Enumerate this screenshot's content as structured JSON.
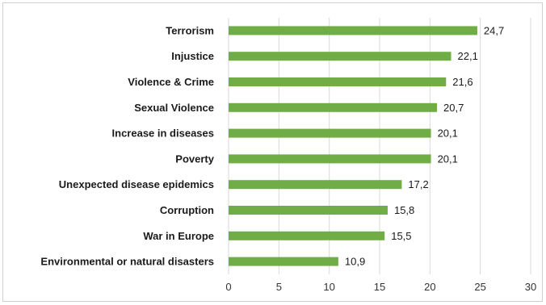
{
  "chart_data": {
    "type": "bar",
    "orientation": "horizontal",
    "title": "",
    "xlabel": "",
    "ylabel": "",
    "categories": [
      "Terrorism",
      "Injustice",
      "Violence & Crime",
      "Sexual Violence",
      "Increase in diseases",
      "Poverty",
      "Unexpected disease epidemics",
      "Corruption",
      "War in Europe",
      "Environmental or natural disasters"
    ],
    "values": [
      24.7,
      22.1,
      21.6,
      20.7,
      20.1,
      20.1,
      17.2,
      15.8,
      15.5,
      10.9
    ],
    "value_labels": [
      "24,7",
      "22,1",
      "21,6",
      "20,7",
      "20,1",
      "20,1",
      "17,2",
      "15,8",
      "15,5",
      "10,9"
    ],
    "xlim": [
      0,
      30
    ],
    "xticks": [
      0,
      5,
      10,
      15,
      20,
      25,
      30
    ],
    "xtick_labels": [
      "0",
      "5",
      "10",
      "15",
      "20",
      "25",
      "30"
    ],
    "grid": "vertical",
    "legend": "none",
    "bar_color": "#70ad47",
    "grid_color": "#d9d9d9"
  }
}
